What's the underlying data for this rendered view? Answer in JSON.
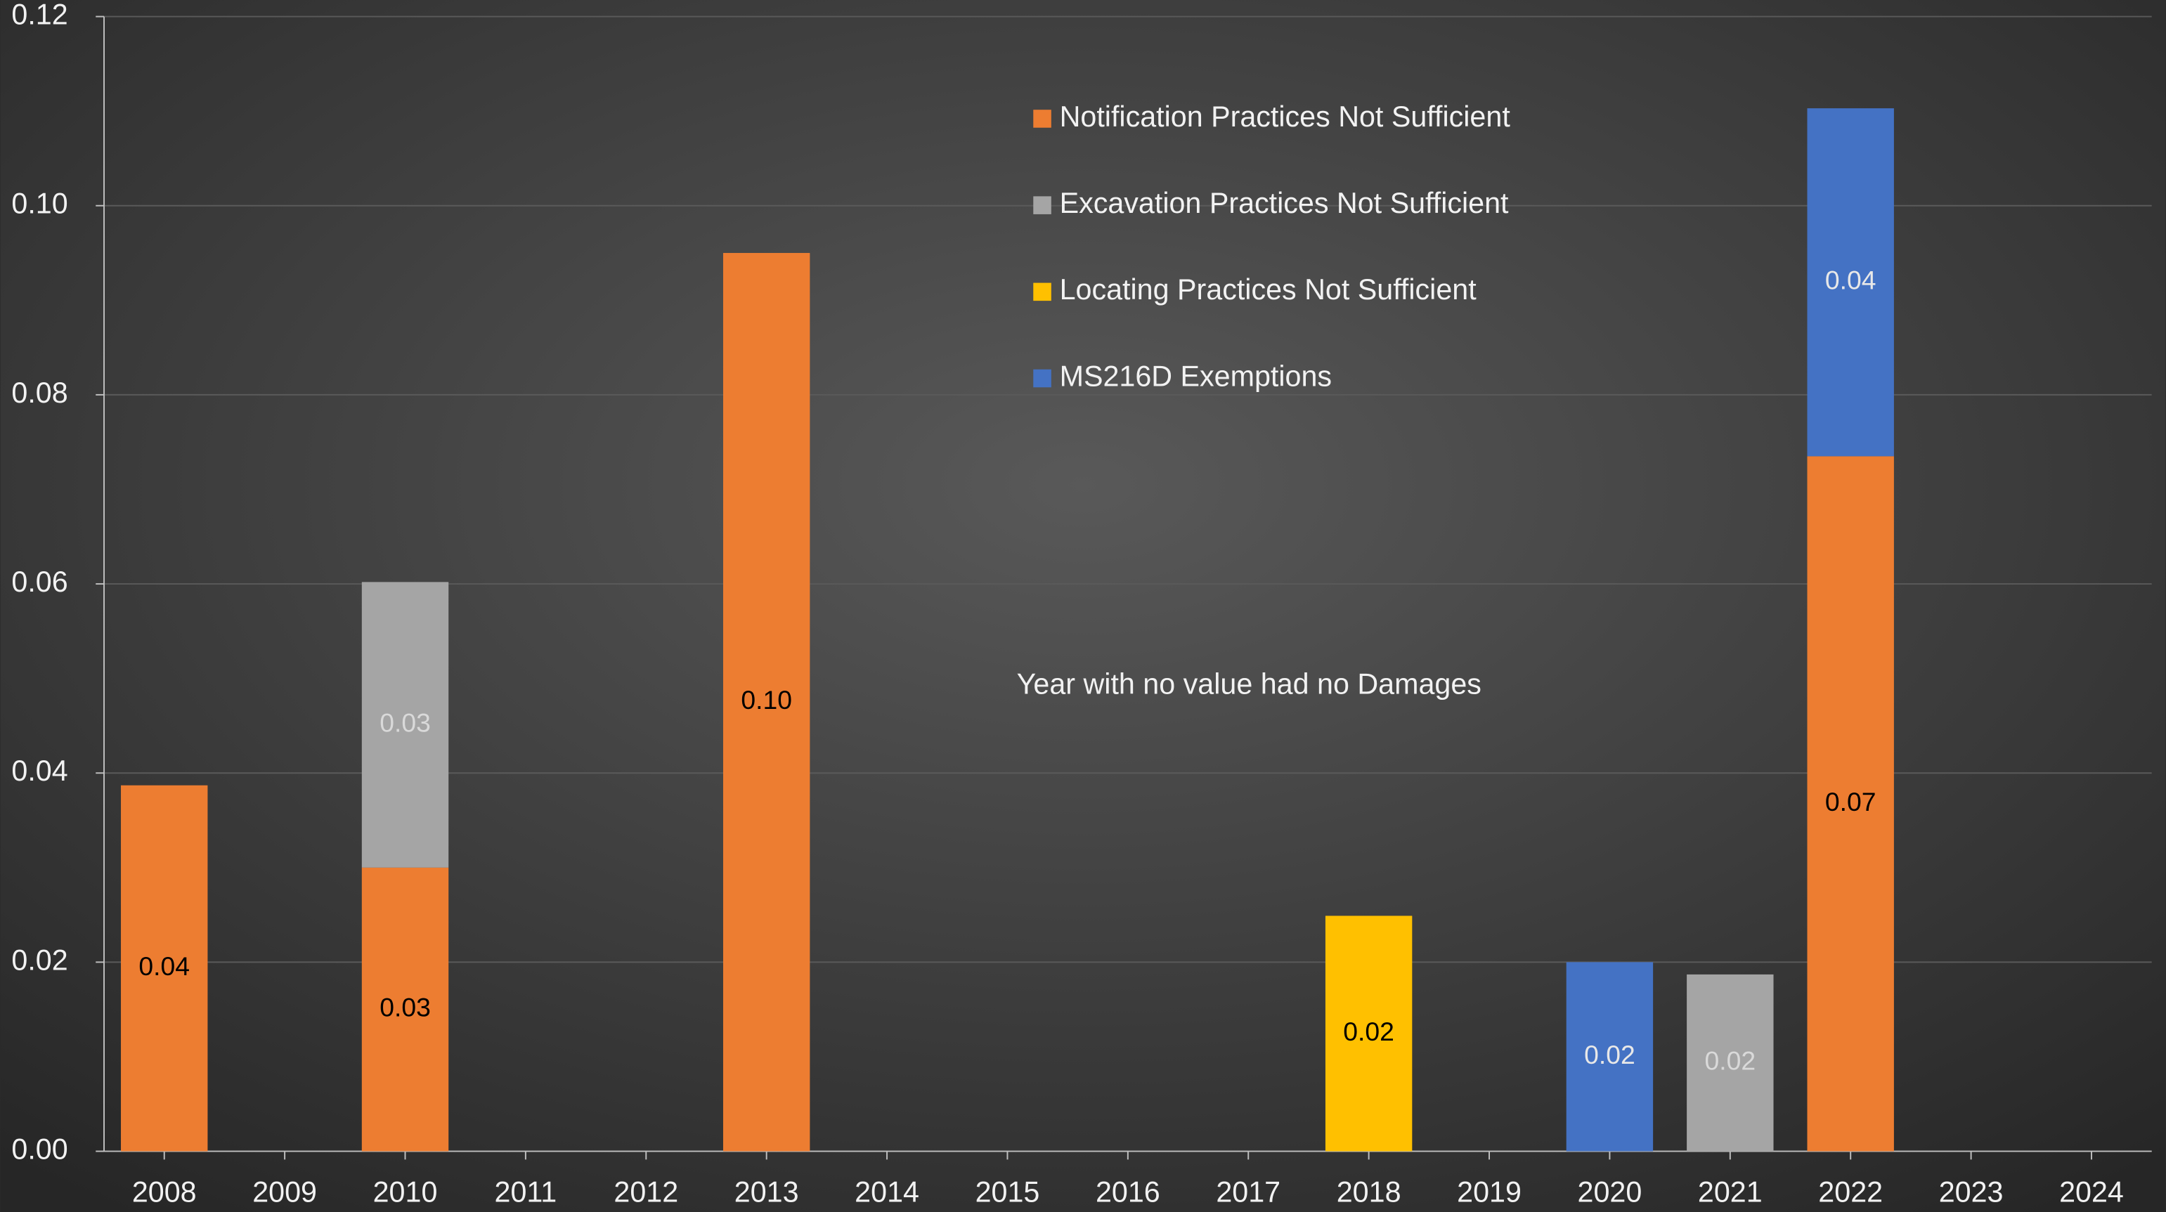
{
  "chart_data": {
    "type": "stacked_bar",
    "annotation": "Year with no value had no Damages",
    "categories": [
      "2008",
      "2009",
      "2010",
      "2011",
      "2012",
      "2013",
      "2014",
      "2015",
      "2016",
      "2017",
      "2018",
      "2019",
      "2020",
      "2021",
      "2022",
      "2023",
      "2024"
    ],
    "series": [
      {
        "name": "Notification Practices Not Sufficient",
        "color": "#ed7d31",
        "label_color": "#000000",
        "values": [
          0.0387,
          null,
          0.03,
          null,
          null,
          0.095,
          null,
          null,
          null,
          null,
          null,
          null,
          null,
          null,
          0.0735,
          null,
          null
        ],
        "value_labels": [
          "0.04",
          null,
          "0.03",
          null,
          null,
          "0.10",
          null,
          null,
          null,
          null,
          null,
          null,
          null,
          null,
          "0.07",
          null,
          null
        ]
      },
      {
        "name": "Excavation Practices Not Sufficient",
        "color": "#a5a5a5",
        "label_color": "#d9d9d9",
        "values": [
          null,
          null,
          0.0302,
          null,
          null,
          null,
          null,
          null,
          null,
          null,
          null,
          null,
          null,
          0.0187,
          null,
          null,
          null
        ],
        "value_labels": [
          null,
          null,
          "0.03",
          null,
          null,
          null,
          null,
          null,
          null,
          null,
          null,
          null,
          null,
          "0.02",
          null,
          null,
          null
        ]
      },
      {
        "name": "Locating Practices Not Sufficient",
        "color": "#ffc000",
        "label_color": "#000000",
        "values": [
          null,
          null,
          null,
          null,
          null,
          null,
          null,
          null,
          null,
          null,
          0.0249,
          null,
          null,
          null,
          null,
          null,
          null
        ],
        "value_labels": [
          null,
          null,
          null,
          null,
          null,
          null,
          null,
          null,
          null,
          null,
          "0.02",
          null,
          null,
          null,
          null,
          null,
          null
        ]
      },
      {
        "name": "MS216D Exemptions",
        "color": "#4472c4",
        "label_color": "#e8e8e8",
        "values": [
          null,
          null,
          null,
          null,
          null,
          null,
          null,
          null,
          null,
          null,
          null,
          null,
          0.02,
          null,
          0.0368,
          null,
          null
        ],
        "value_labels": [
          null,
          null,
          null,
          null,
          null,
          null,
          null,
          null,
          null,
          null,
          null,
          null,
          "0.02",
          null,
          "0.04",
          null,
          null
        ]
      }
    ],
    "ylim": [
      0,
      0.12
    ],
    "yticks": [
      {
        "value": 0,
        "label": "0.00"
      },
      0.02,
      0.04,
      0.06,
      0.08,
      {
        "value": 0.1,
        "label": "0.10"
      },
      0.12
    ],
    "grid": true,
    "legend": "top"
  }
}
